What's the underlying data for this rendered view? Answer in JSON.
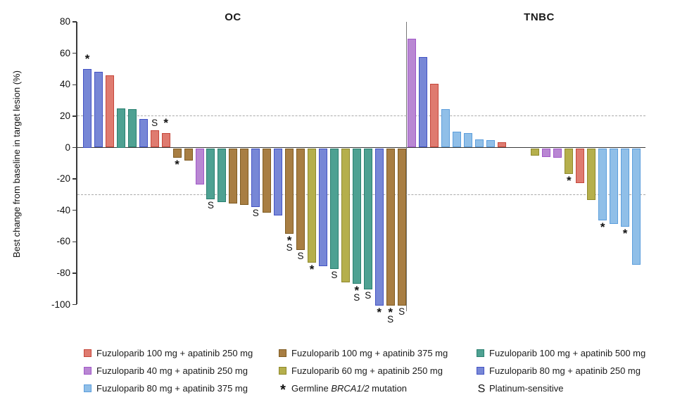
{
  "chart_data": {
    "type": "bar",
    "subtype": "waterfall",
    "ylabel": "Best change from baseline in target lesion (%)",
    "ylim": [
      -105,
      80
    ],
    "yticks": [
      80,
      60,
      40,
      20,
      0,
      -20,
      -40,
      -60,
      -80,
      -100
    ],
    "reference_lines": [
      20,
      -30
    ],
    "grid": "off",
    "legend_position": "bottom",
    "markers": {
      "brca": "*",
      "ps": "S"
    },
    "marker_meanings": {
      "brca": "Germline BRCA1/2 mutation",
      "ps": "Platinum-sensitive"
    },
    "arms": {
      "F100_A250": {
        "label": "Fuzuloparib 100 mg + apatinib 250 mg",
        "fill": "#DF7B70",
        "border": "#C5473B"
      },
      "F100_A375": {
        "label": "Fuzuloparib 100 mg + apatinib 375 mg",
        "fill": "#A87E43",
        "border": "#7F5B21"
      },
      "F100_A500": {
        "label": "Fuzuloparib 100 mg + apatinib 500 mg",
        "fill": "#4EA192",
        "border": "#2A8070"
      },
      "F40_A250": {
        "label": "Fuzuloparib 40 mg + apatinib 250 mg",
        "fill": "#B987D3",
        "border": "#A158C8"
      },
      "F60_A250": {
        "label": "Fuzuloparib 60 mg + apatinib 250 mg",
        "fill": "#B5AF4C",
        "border": "#8F892B"
      },
      "F80_A250": {
        "label": "Fuzuloparib 80 mg + apatinib 250 mg",
        "fill": "#7787D6",
        "border": "#4353C4"
      },
      "F80_A375": {
        "label": "Fuzuloparib 80 mg + apatinib 375 mg",
        "fill": "#90BFE8",
        "border": "#5C9EDC"
      }
    },
    "panels": [
      {
        "title": "OC",
        "bars": [
          {
            "value": 50,
            "arm": "F80_A250",
            "marks": [
              "brca"
            ]
          },
          {
            "value": 48,
            "arm": "F80_A250",
            "marks": []
          },
          {
            "value": 46,
            "arm": "F100_A250",
            "marks": []
          },
          {
            "value": 25,
            "arm": "F100_A500",
            "marks": []
          },
          {
            "value": 24.5,
            "arm": "F100_A500",
            "marks": []
          },
          {
            "value": 18,
            "arm": "F80_A250",
            "marks": []
          },
          {
            "value": 11,
            "arm": "F100_A250",
            "marks": [
              "ps"
            ]
          },
          {
            "value": 9,
            "arm": "F100_A250",
            "marks": [
              "brca"
            ]
          },
          {
            "value": -6,
            "arm": "F100_A375",
            "marks": [
              "brca"
            ]
          },
          {
            "value": -8,
            "arm": "F100_A375",
            "marks": []
          },
          {
            "value": -23,
            "arm": "F40_A250",
            "marks": []
          },
          {
            "value": -32.5,
            "arm": "F100_A500",
            "marks": [
              "ps"
            ]
          },
          {
            "value": -34.5,
            "arm": "F100_A500",
            "marks": []
          },
          {
            "value": -35,
            "arm": "F100_A375",
            "marks": []
          },
          {
            "value": -36,
            "arm": "F100_A375",
            "marks": []
          },
          {
            "value": -37.5,
            "arm": "F80_A250",
            "marks": [
              "ps"
            ]
          },
          {
            "value": -41,
            "arm": "F100_A375",
            "marks": []
          },
          {
            "value": -43,
            "arm": "F80_A250",
            "marks": []
          },
          {
            "value": -54.5,
            "arm": "F100_A375",
            "marks": [
              "brca",
              "ps"
            ]
          },
          {
            "value": -65,
            "arm": "F100_A375",
            "marks": [
              "ps"
            ]
          },
          {
            "value": -73,
            "arm": "F60_A250",
            "marks": [
              "brca"
            ]
          },
          {
            "value": -75,
            "arm": "F80_A250",
            "marks": []
          },
          {
            "value": -77,
            "arm": "F100_A500",
            "marks": [
              "ps"
            ]
          },
          {
            "value": -85.5,
            "arm": "F60_A250",
            "marks": []
          },
          {
            "value": -86.5,
            "arm": "F100_A500",
            "marks": [
              "brca",
              "ps"
            ]
          },
          {
            "value": -90,
            "arm": "F100_A500",
            "marks": [
              "ps"
            ]
          },
          {
            "value": -100,
            "arm": "F80_A250",
            "marks": [
              "brca"
            ]
          },
          {
            "value": -100,
            "arm": "F100_A375",
            "marks": [
              "brca",
              "ps"
            ]
          },
          {
            "value": -100,
            "arm": "F100_A375",
            "marks": [
              "ps"
            ]
          }
        ]
      },
      {
        "title": "TNBC",
        "bars": [
          {
            "value": 69.5,
            "arm": "F40_A250",
            "marks": []
          },
          {
            "value": 57.5,
            "arm": "F80_A250",
            "marks": []
          },
          {
            "value": 40.5,
            "arm": "F100_A250",
            "marks": []
          },
          {
            "value": 24.5,
            "arm": "F80_A375",
            "marks": []
          },
          {
            "value": 10,
            "arm": "F80_A375",
            "marks": []
          },
          {
            "value": 9,
            "arm": "F80_A375",
            "marks": []
          },
          {
            "value": 5,
            "arm": "F80_A375",
            "marks": []
          },
          {
            "value": 4.5,
            "arm": "F80_A375",
            "marks": []
          },
          {
            "value": 3.5,
            "arm": "F100_A250",
            "marks": []
          },
          {
            "value": 0,
            "arm": null,
            "marks": []
          },
          {
            "value": 0,
            "arm": null,
            "marks": []
          },
          {
            "value": -4.5,
            "arm": "F60_A250",
            "marks": []
          },
          {
            "value": -5.5,
            "arm": "F40_A250",
            "marks": []
          },
          {
            "value": -6,
            "arm": "F40_A250",
            "marks": []
          },
          {
            "value": -16.5,
            "arm": "F60_A250",
            "marks": [
              "brca"
            ]
          },
          {
            "value": -22,
            "arm": "F100_A250",
            "marks": []
          },
          {
            "value": -33,
            "arm": "F60_A250",
            "marks": []
          },
          {
            "value": -46,
            "arm": "F80_A375",
            "marks": [
              "brca"
            ]
          },
          {
            "value": -48,
            "arm": "F80_A375",
            "marks": []
          },
          {
            "value": -50,
            "arm": "F80_A375",
            "marks": [
              "brca"
            ]
          },
          {
            "value": -74,
            "arm": "F80_A375",
            "marks": []
          }
        ]
      }
    ],
    "legend": {
      "columns": [
        {
          "items": [
            {
              "type": "swatch",
              "arm": "F100_A250",
              "label": "Fuzuloparib 100 mg + apatinib 250 mg"
            },
            {
              "type": "swatch",
              "arm": "F40_A250",
              "label": "Fuzuloparib 40 mg + apatinib 250 mg"
            },
            {
              "type": "swatch",
              "arm": "F80_A375",
              "label": "Fuzuloparib 80 mg + apatinib 375 mg"
            }
          ]
        },
        {
          "items": [
            {
              "type": "swatch",
              "arm": "F100_A375",
              "label": "Fuzuloparib 100 mg + apatinib 375 mg"
            },
            {
              "type": "swatch",
              "arm": "F60_A250",
              "label": "Fuzuloparib 60 mg + apatinib 250 mg"
            },
            {
              "type": "symbol",
              "symbol": "*",
              "label_parts": [
                {
                  "text": "Germline "
                },
                {
                  "text": "BRCA1/2",
                  "italic": true
                },
                {
                  "text": " mutation"
                }
              ]
            }
          ]
        },
        {
          "items": [
            {
              "type": "swatch",
              "arm": "F100_A500",
              "label": "Fuzuloparib 100 mg + apatinib 500 mg"
            },
            {
              "type": "swatch",
              "arm": "F80_A250",
              "label": "Fuzuloparib 80 mg + apatinib 250 mg"
            },
            {
              "type": "symbol",
              "symbol": "S",
              "label_parts": [
                {
                  "text": "Platinum-sensitive"
                }
              ]
            }
          ]
        }
      ]
    }
  }
}
